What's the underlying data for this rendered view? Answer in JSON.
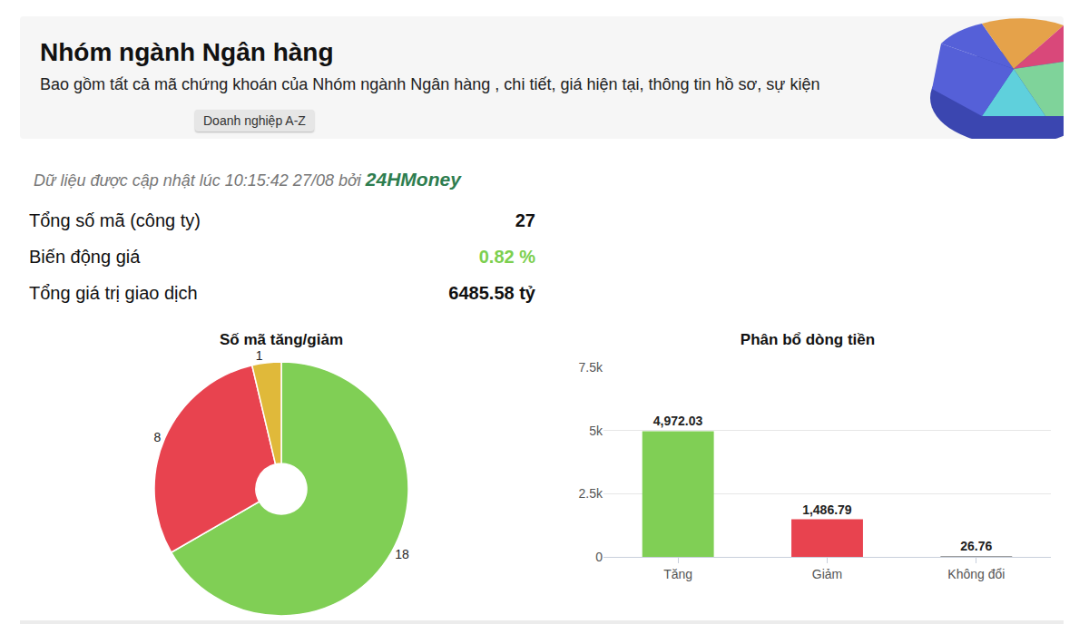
{
  "header": {
    "title": "Nhóm ngành Ngân hàng",
    "subtitle": "Bao gồm tất cả mã chứng khoán của Nhóm ngành Ngân hàng , chi tiết, giá hiện tại, thông tin hồ sơ, sự kiện",
    "button": "Doanh nghiệp A-Z"
  },
  "update": {
    "text": "Dữ liệu được cập nhật lúc 10:15:42 27/08 bởi",
    "source": "24HMoney"
  },
  "stats": [
    {
      "label": "Tổng số mã (công ty)",
      "value": "27"
    },
    {
      "label": "Biến động giá",
      "value": "0.82 %"
    },
    {
      "label": "Tổng giá trị giao dịch",
      "value": "6485.58 tỷ"
    }
  ],
  "chart_data": [
    {
      "type": "pie",
      "title": "Số mã tăng/giảm",
      "values": [
        18,
        8,
        1
      ],
      "colors": [
        "#80cf55",
        "#e8434f",
        "#e0b93a"
      ],
      "data_labels": true
    },
    {
      "type": "bar",
      "title": "Phân bổ dòng tiền",
      "categories": [
        "Tăng",
        "Giảm",
        "Không đổi"
      ],
      "values": [
        4972.03,
        1486.79,
        26.76
      ],
      "value_labels": [
        "4,972.03",
        "1,486.79",
        "26.76"
      ],
      "colors": [
        "#80cf55",
        "#e8434f",
        "#9e9e9e"
      ],
      "ylim": [
        0,
        7500
      ],
      "yticks": [
        0,
        {
          "value": 2500,
          "label": "2.5k"
        },
        {
          "value": 5000,
          "label": "5k"
        },
        {
          "value": 7500,
          "label": "7.5k"
        }
      ],
      "grid": true,
      "data_labels": true
    }
  ]
}
